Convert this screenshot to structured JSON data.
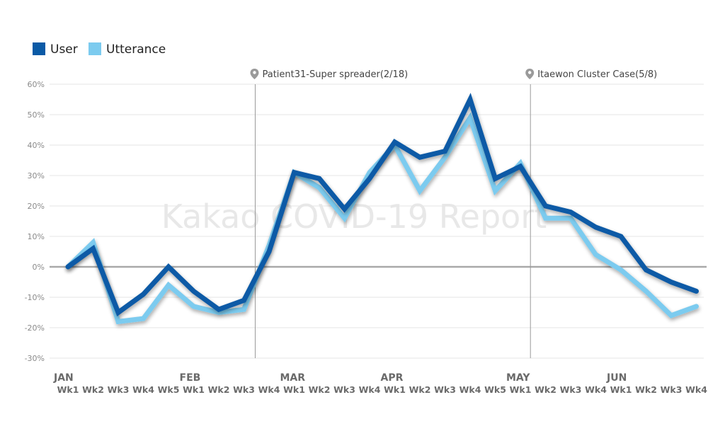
{
  "chart_data": {
    "type": "line",
    "watermark": "Kakao COVID-19 Report",
    "y_ticks": [
      "60%",
      "50%",
      "40%",
      "30%",
      "20%",
      "10%",
      "0%",
      "-10%",
      "-20%",
      "-30%"
    ],
    "ylim": [
      -30,
      60
    ],
    "grid": true,
    "legend_position": "top-left",
    "x": [
      "JAN Wk1",
      "JAN Wk2",
      "JAN Wk3",
      "JAN Wk4",
      "JAN Wk5",
      "FEB Wk1",
      "FEB Wk2",
      "FEB Wk3",
      "FEB Wk4",
      "MAR Wk1",
      "MAR Wk2",
      "MAR Wk3",
      "MAR Wk4",
      "APR Wk1",
      "APR Wk2",
      "APR Wk3",
      "APR Wk4",
      "APR Wk5",
      "MAY Wk1",
      "MAY Wk2",
      "MAY Wk3",
      "MAY Wk4",
      "JUN Wk1",
      "JUN Wk2",
      "JUN Wk3",
      "JUN Wk4"
    ],
    "week_labels": [
      "Wk1",
      "Wk2",
      "Wk3",
      "Wk4",
      "Wk5",
      "Wk1",
      "Wk2",
      "Wk3",
      "Wk4",
      "Wk1",
      "Wk2",
      "Wk3",
      "Wk4",
      "Wk1",
      "Wk2",
      "Wk3",
      "Wk4",
      "Wk5",
      "Wk1",
      "Wk2",
      "Wk3",
      "Wk4",
      "Wk1",
      "Wk2",
      "Wk3",
      "Wk4"
    ],
    "months": [
      {
        "label": "JAN",
        "start_index": 0
      },
      {
        "label": "FEB",
        "start_index": 5
      },
      {
        "label": "MAR",
        "start_index": 9
      },
      {
        "label": "APR",
        "start_index": 13
      },
      {
        "label": "MAY",
        "start_index": 18
      },
      {
        "label": "JUN",
        "start_index": 22
      }
    ],
    "series": [
      {
        "name": "User",
        "color": "#0a5aa6",
        "values": [
          0,
          6,
          -15,
          -9,
          0,
          -8,
          -14,
          -11,
          5,
          31,
          29,
          19,
          29,
          41,
          36,
          38,
          55,
          29,
          33,
          20,
          18,
          13,
          10,
          -1,
          -5,
          -8
        ]
      },
      {
        "name": "Utterance",
        "color": "#7ccbef",
        "values": [
          0,
          8,
          -18,
          -17,
          -6,
          -13,
          -15,
          -14,
          7,
          31,
          26,
          16,
          31,
          40,
          25,
          36,
          49,
          25,
          34,
          16,
          16,
          4,
          -1,
          -8,
          -16,
          -13
        ]
      }
    ],
    "annotations": [
      {
        "label": "Patient31-Super spreader(2/18)",
        "x_index": 7.45,
        "icon": "map-pin-icon"
      },
      {
        "label": "Itaewon Cluster Case(5/8)",
        "x_index": 18.4,
        "icon": "map-pin-icon"
      }
    ]
  }
}
